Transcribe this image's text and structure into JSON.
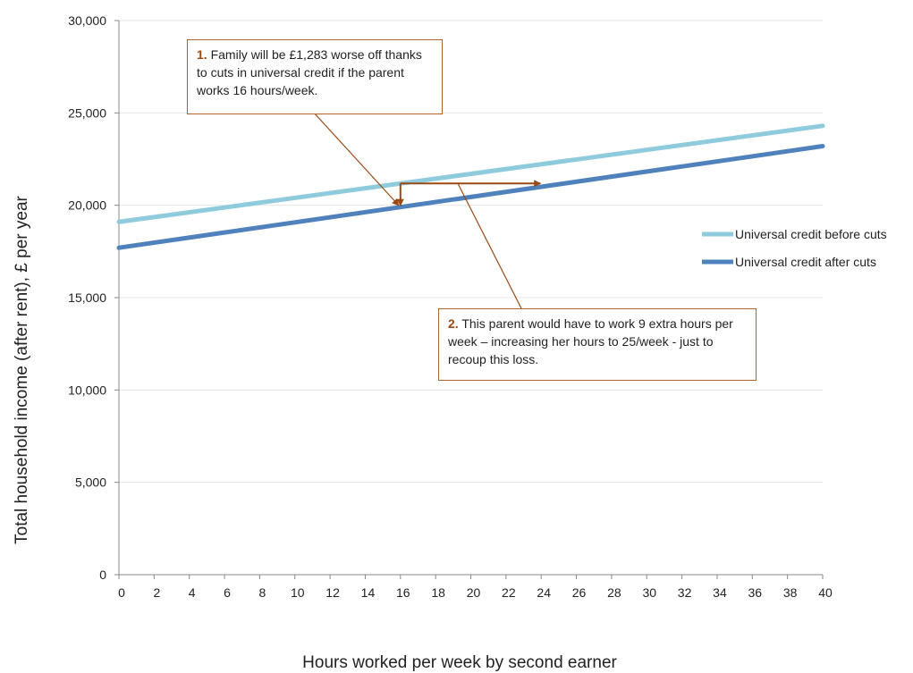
{
  "chart_data": {
    "type": "line",
    "xlabel": "Hours worked per week by second earner",
    "ylabel": "Total household income (after rent), £ per year",
    "xlim": [
      0,
      40
    ],
    "ylim": [
      0,
      30000
    ],
    "x_ticks": [
      "0",
      "2",
      "4",
      "6",
      "8",
      "10",
      "12",
      "14",
      "16",
      "18",
      "20",
      "22",
      "24",
      "26",
      "28",
      "30",
      "32",
      "34",
      "36",
      "38",
      "40"
    ],
    "y_ticks": [
      "0",
      "5,000",
      "10,000",
      "15,000",
      "20,000",
      "25,000",
      "30,000"
    ],
    "grid": "horizontal",
    "legend_position": "right",
    "series": [
      {
        "name": "Universal credit before cuts",
        "color": "#8ecbdc",
        "x": [
          0,
          40
        ],
        "y": [
          19100,
          24300
        ]
      },
      {
        "name": "Universal credit after cuts",
        "color": "#4f81bd",
        "x": [
          0,
          40
        ],
        "y": [
          17700,
          23200
        ]
      }
    ],
    "annotations": [
      {
        "number": "1.",
        "text": "Family will be £1,283 worse off thanks to cuts in universal credit  if the parent works 16 hours/week."
      },
      {
        "number": "2.",
        "text": "This parent would have to work 9 extra hours per week – increasing her hours to 25/week - just to recoup this loss."
      }
    ],
    "annotation_color": "#9c4a14"
  }
}
